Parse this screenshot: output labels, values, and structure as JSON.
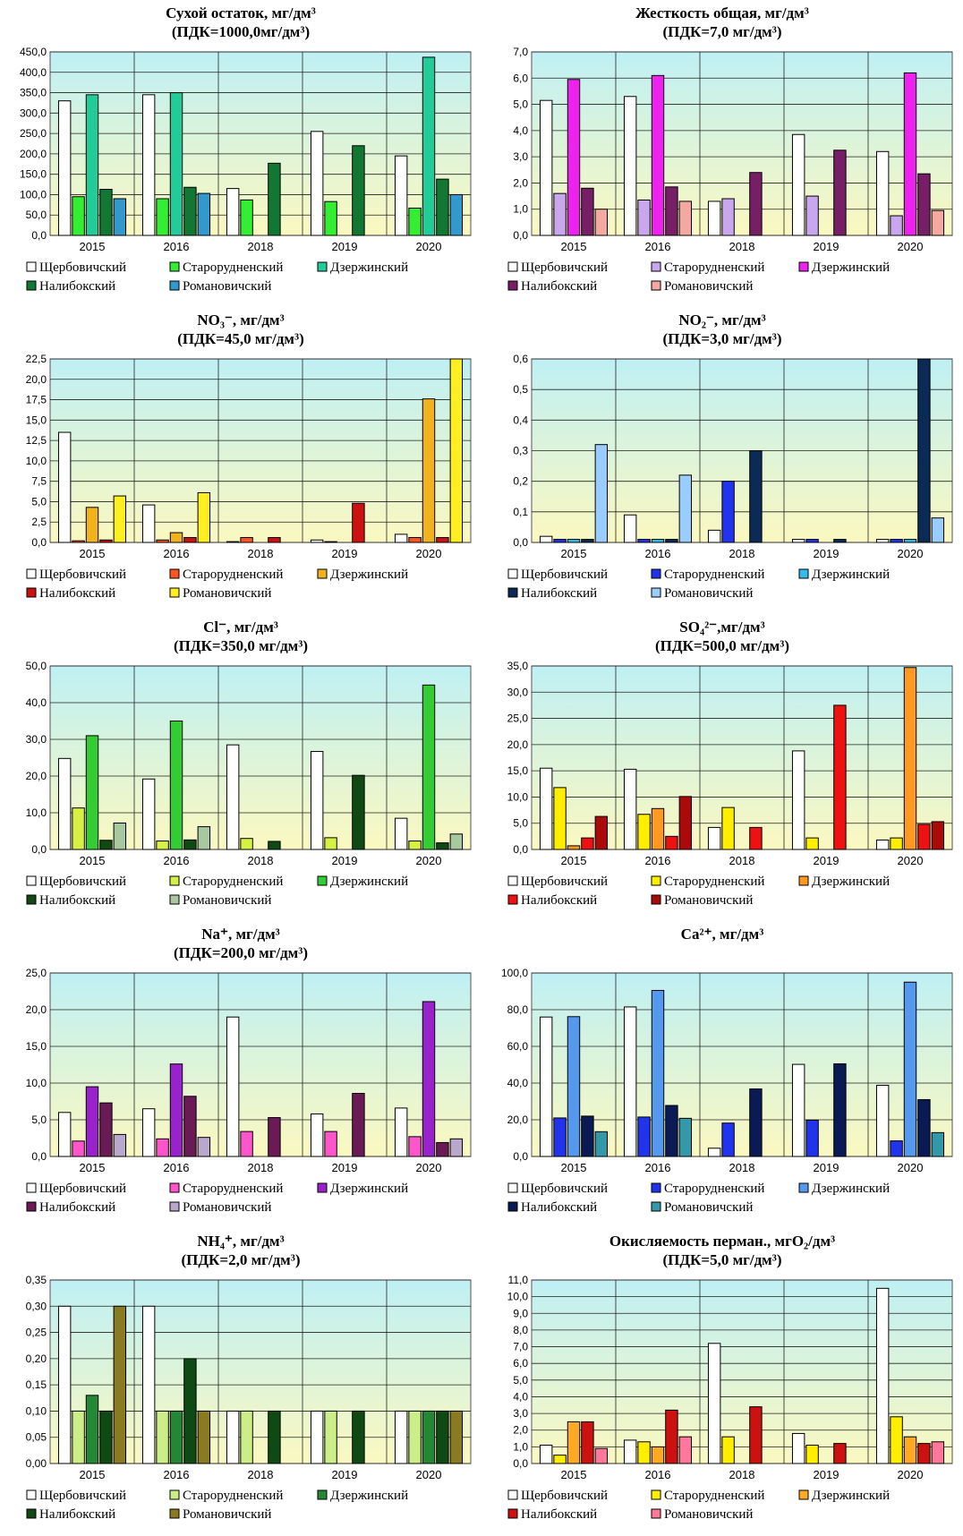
{
  "chart_data": [
    {
      "type": "bar",
      "title": "Сухой остаток, мг/дм³",
      "subtitle": "(ПДК=1000,0мг/дм³)",
      "categories": [
        "2015",
        "2016",
        "2018",
        "2019",
        "2020"
      ],
      "ylim": [
        0,
        450
      ],
      "yticks": [
        "0,0",
        "50,0",
        "100,0",
        "150,0",
        "200,0",
        "250,0",
        "300,0",
        "350,0",
        "400,0",
        "450,0"
      ],
      "series": [
        {
          "name": "Щербовичский",
          "color": "#ffffff",
          "values": [
            330,
            345,
            115,
            255,
            195
          ]
        },
        {
          "name": "Старорудненский",
          "color": "#33ee33",
          "values": [
            95,
            90,
            87,
            83,
            67
          ]
        },
        {
          "name": "Дзержинский",
          "color": "#22cc99",
          "values": [
            345,
            350,
            null,
            null,
            437
          ]
        },
        {
          "name": "Налибокский",
          "color": "#117733",
          "values": [
            113,
            118,
            177,
            220,
            138
          ]
        },
        {
          "name": "Романовичский",
          "color": "#3399cc",
          "values": [
            90,
            103,
            null,
            null,
            100
          ]
        }
      ]
    },
    {
      "type": "bar",
      "title": "Жесткость общая, мг/дм³",
      "subtitle": "(ПДК=7,0 мг/дм³)",
      "categories": [
        "2015",
        "2016",
        "2018",
        "2019",
        "2020"
      ],
      "ylim": [
        0,
        7
      ],
      "yticks": [
        "0,0",
        "1,0",
        "2,0",
        "3,0",
        "4,0",
        "5,0",
        "6,0",
        "7,0"
      ],
      "series": [
        {
          "name": "Щербовичский",
          "color": "#ffffff",
          "values": [
            5.15,
            5.3,
            1.3,
            3.85,
            3.2
          ]
        },
        {
          "name": "Старорудненский",
          "color": "#c9a7ee",
          "values": [
            1.6,
            1.35,
            1.4,
            1.5,
            0.75
          ]
        },
        {
          "name": "Дзержинский",
          "color": "#ee22ee",
          "values": [
            5.95,
            6.1,
            null,
            null,
            6.2
          ]
        },
        {
          "name": "Налибокский",
          "color": "#771f66",
          "values": [
            1.8,
            1.85,
            2.4,
            3.25,
            2.35
          ]
        },
        {
          "name": "Романовичский",
          "color": "#f4a9a0",
          "values": [
            1.0,
            1.3,
            null,
            null,
            0.95
          ]
        }
      ]
    },
    {
      "type": "bar",
      "title": "NO₃⁻, мг/дм³",
      "subtitle": "(ПДК=45,0 мг/дм³)",
      "categories": [
        "2015",
        "2016",
        "2018",
        "2019",
        "2020"
      ],
      "ylim": [
        0,
        22.5
      ],
      "yticks": [
        "0,0",
        "2,5",
        "5,0",
        "7,5",
        "10,0",
        "12,5",
        "15,0",
        "17,5",
        "20,0",
        "22,5"
      ],
      "series": [
        {
          "name": "Щербовичский",
          "color": "#ffffff",
          "values": [
            13.5,
            4.6,
            0.1,
            0.3,
            1.0
          ]
        },
        {
          "name": "Старорудненский",
          "color": "#ff5522",
          "values": [
            0.2,
            0.3,
            0.6,
            0.1,
            0.6
          ]
        },
        {
          "name": "Дзержинский",
          "color": "#f2b21c",
          "values": [
            4.3,
            1.2,
            null,
            null,
            17.6
          ]
        },
        {
          "name": "Налибокский",
          "color": "#cc1111",
          "values": [
            0.3,
            0.6,
            0.6,
            4.8,
            0.6
          ]
        },
        {
          "name": "Романовичский",
          "color": "#ffee22",
          "values": [
            5.7,
            6.1,
            null,
            null,
            22.5
          ]
        }
      ]
    },
    {
      "type": "bar",
      "title": "NO₂⁻, мг/дм³",
      "subtitle": "(ПДК=3,0 мг/дм³)",
      "categories": [
        "2015",
        "2016",
        "2018",
        "2019",
        "2020"
      ],
      "ylim": [
        0,
        0.6
      ],
      "yticks": [
        "0,0",
        "0,1",
        "0,2",
        "0,3",
        "0,4",
        "0,5",
        "0,6"
      ],
      "series": [
        {
          "name": "Щербовичский",
          "color": "#ffffff",
          "values": [
            0.02,
            0.09,
            0.04,
            0.01,
            0.01
          ]
        },
        {
          "name": "Старорудненский",
          "color": "#2233ee",
          "values": [
            0.01,
            0.01,
            0.2,
            0.01,
            0.01
          ]
        },
        {
          "name": "Дзержинский",
          "color": "#33bbee",
          "values": [
            0.01,
            0.01,
            null,
            null,
            0.01
          ]
        },
        {
          "name": "Налибокский",
          "color": "#0b2a55",
          "values": [
            0.01,
            0.01,
            0.3,
            0.01,
            0.6
          ]
        },
        {
          "name": "Романовичский",
          "color": "#99ccff",
          "values": [
            0.32,
            0.22,
            null,
            null,
            0.08
          ]
        }
      ]
    },
    {
      "type": "bar",
      "title": "Cl⁻, мг/дм³",
      "subtitle": "(ПДК=350,0 мг/дм³)",
      "categories": [
        "2015",
        "2016",
        "2018",
        "2019",
        "2020"
      ],
      "ylim": [
        0,
        50
      ],
      "yticks": [
        "0,0",
        "10,0",
        "20,0",
        "30,0",
        "40,0",
        "50,0"
      ],
      "series": [
        {
          "name": "Щербовичский",
          "color": "#ffffff",
          "values": [
            24.8,
            19.2,
            28.5,
            26.7,
            8.5
          ]
        },
        {
          "name": "Старорудненский",
          "color": "#d6f045",
          "values": [
            11.3,
            2.3,
            3.0,
            3.2,
            2.3
          ]
        },
        {
          "name": "Дзержинский",
          "color": "#33cc33",
          "values": [
            31.0,
            35.0,
            null,
            null,
            44.8
          ]
        },
        {
          "name": "Налибокский",
          "color": "#0f4a14",
          "values": [
            2.5,
            2.6,
            2.2,
            20.2,
            1.8
          ]
        },
        {
          "name": "Романовичский",
          "color": "#a8c8a0",
          "values": [
            7.2,
            6.2,
            null,
            null,
            4.2
          ]
        }
      ]
    },
    {
      "type": "bar",
      "title": "SO₄²⁻,мг/дм³",
      "subtitle": "(ПДК=500,0 мг/дм³)",
      "categories": [
        "2015",
        "2016",
        "2018",
        "2019",
        "2020"
      ],
      "ylim": [
        0,
        35
      ],
      "yticks": [
        "0,0",
        "5,0",
        "10,0",
        "15,0",
        "20,0",
        "25,0",
        "30,0",
        "35,0"
      ],
      "series": [
        {
          "name": "Щербовичский",
          "color": "#ffffff",
          "values": [
            15.5,
            15.3,
            4.2,
            18.8,
            1.8
          ]
        },
        {
          "name": "Старорудненский",
          "color": "#ffee00",
          "values": [
            11.8,
            6.7,
            8.0,
            2.2,
            2.2
          ]
        },
        {
          "name": "Дзержинский",
          "color": "#ff9922",
          "values": [
            0.7,
            7.8,
            null,
            null,
            34.7
          ]
        },
        {
          "name": "Налибокский",
          "color": "#ee1111",
          "values": [
            2.2,
            2.5,
            4.2,
            27.5,
            4.8
          ]
        },
        {
          "name": "Романовичский",
          "color": "#aa0a0a",
          "values": [
            6.3,
            10.1,
            null,
            null,
            5.3
          ]
        }
      ]
    },
    {
      "type": "bar",
      "title": "Na⁺, мг/дм³",
      "subtitle": "(ПДК=200,0 мг/дм³)",
      "categories": [
        "2015",
        "2016",
        "2018",
        "2019",
        "2020"
      ],
      "ylim": [
        0,
        25
      ],
      "yticks": [
        "0,0",
        "5,0",
        "10,0",
        "15,0",
        "20,0",
        "25,0"
      ],
      "series": [
        {
          "name": "Щербовичский",
          "color": "#ffffff",
          "values": [
            6.0,
            6.5,
            19.0,
            5.8,
            6.6
          ]
        },
        {
          "name": "Старорудненский",
          "color": "#ff55cc",
          "values": [
            2.1,
            2.4,
            3.4,
            3.4,
            2.7
          ]
        },
        {
          "name": "Дзержинский",
          "color": "#9922cc",
          "values": [
            9.5,
            12.6,
            null,
            null,
            21.1
          ]
        },
        {
          "name": "Налибокский",
          "color": "#6a1a55",
          "values": [
            7.3,
            8.2,
            5.3,
            8.6,
            1.9
          ]
        },
        {
          "name": "Романовичский",
          "color": "#b9a8cc",
          "values": [
            3.0,
            2.6,
            null,
            null,
            2.4
          ]
        }
      ]
    },
    {
      "type": "bar",
      "title": "Ca²⁺, мг/дм³",
      "subtitle": "",
      "categories": [
        "2015",
        "2016",
        "2018",
        "2019",
        "2020"
      ],
      "ylim": [
        0,
        100
      ],
      "yticks": [
        "0,0",
        "20,0",
        "40,0",
        "60,0",
        "80,0",
        "100,0"
      ],
      "series": [
        {
          "name": "Щербовичский",
          "color": "#ffffff",
          "values": [
            76.0,
            81.5,
            4.5,
            50.2,
            38.8
          ]
        },
        {
          "name": "Старорудненский",
          "color": "#2233ee",
          "values": [
            21.0,
            21.5,
            18.2,
            19.8,
            8.5
          ]
        },
        {
          "name": "Дзержинский",
          "color": "#5599ee",
          "values": [
            76.2,
            90.5,
            null,
            null,
            95.0
          ]
        },
        {
          "name": "Налибокский",
          "color": "#0a1a55",
          "values": [
            22.0,
            27.8,
            36.8,
            50.5,
            31.0
          ]
        },
        {
          "name": "Романовичский",
          "color": "#3399aa",
          "values": [
            13.5,
            20.8,
            null,
            null,
            13.0
          ]
        }
      ]
    },
    {
      "type": "bar",
      "title": "NH₄⁺, мг/дм³",
      "subtitle": "(ПДК=2,0 мг/дм³)",
      "categories": [
        "2015",
        "2016",
        "2018",
        "2019",
        "2020"
      ],
      "ylim": [
        0,
        0.35
      ],
      "yticks": [
        "0,00",
        "0,05",
        "0,10",
        "0,15",
        "0,20",
        "0,25",
        "0,30",
        "0,35"
      ],
      "series": [
        {
          "name": "Щербовичский",
          "color": "#ffffff",
          "values": [
            0.3,
            0.3,
            0.1,
            0.1,
            0.1
          ]
        },
        {
          "name": "Старорудненский",
          "color": "#ccee88",
          "values": [
            0.1,
            0.1,
            0.1,
            0.1,
            0.1
          ]
        },
        {
          "name": "Дзержинский",
          "color": "#228833",
          "values": [
            0.13,
            0.1,
            null,
            null,
            0.1
          ]
        },
        {
          "name": "Налибокский",
          "color": "#0f4a14",
          "values": [
            0.1,
            0.2,
            0.1,
            0.1,
            0.1
          ]
        },
        {
          "name": "Романовичский",
          "color": "#8a7a22",
          "values": [
            0.3,
            0.1,
            null,
            null,
            0.1
          ]
        }
      ]
    },
    {
      "type": "bar",
      "title": "Окисляемость перман., мгО₂/дм³",
      "subtitle": "(ПДК=5,0 мг/дм³)",
      "categories": [
        "2015",
        "2016",
        "2018",
        "2019",
        "2020"
      ],
      "ylim": [
        0,
        11
      ],
      "yticks": [
        "0,0",
        "1,0",
        "2,0",
        "3,0",
        "4,0",
        "5,0",
        "6,0",
        "7,0",
        "8,0",
        "9,0",
        "10,0",
        "11,0"
      ],
      "series": [
        {
          "name": "Щербовичский",
          "color": "#ffffff",
          "values": [
            1.1,
            1.4,
            7.2,
            1.8,
            10.5
          ]
        },
        {
          "name": "Старорудненский",
          "color": "#ffee00",
          "values": [
            0.5,
            1.3,
            1.6,
            1.1,
            2.8
          ]
        },
        {
          "name": "Дзержинский",
          "color": "#ffaa22",
          "values": [
            2.5,
            1.0,
            null,
            null,
            1.6
          ]
        },
        {
          "name": "Налибокский",
          "color": "#cc1111",
          "values": [
            2.5,
            3.2,
            3.4,
            1.2,
            1.2
          ]
        },
        {
          "name": "Романовичский",
          "color": "#ff7799",
          "values": [
            0.9,
            1.6,
            null,
            null,
            1.3
          ]
        }
      ]
    }
  ]
}
